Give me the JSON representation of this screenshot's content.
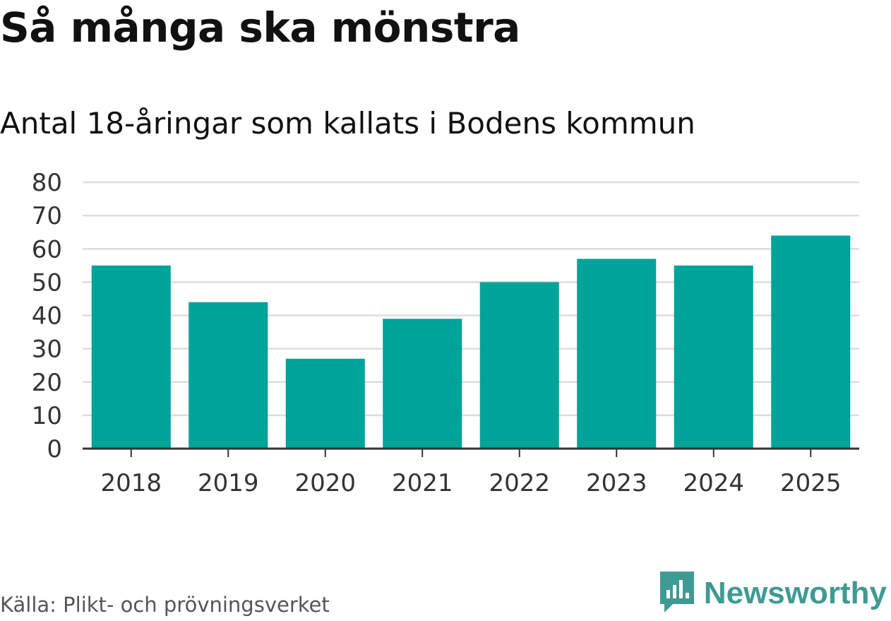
{
  "title": "Så många ska mönstra",
  "subtitle": "Antal 18-åringar som kallats i Bodens kommun",
  "source": "Källa: Plikt- och prövningsverket",
  "brand": {
    "name": "Newsworthy",
    "icon": "newsworthy-logo-icon"
  },
  "colors": {
    "bar": "#00a39a",
    "grid": "#dddddd",
    "axis": "#333333",
    "brand": "#3f9a94"
  },
  "chart_data": {
    "type": "bar",
    "categories": [
      "2018",
      "2019",
      "2020",
      "2021",
      "2022",
      "2023",
      "2024",
      "2025"
    ],
    "values": [
      55,
      44,
      27,
      39,
      50,
      57,
      55,
      64
    ],
    "title": "Så många ska mönstra",
    "subtitle": "Antal 18-åringar som kallats i Bodens kommun",
    "xlabel": "",
    "ylabel": "",
    "ylim": [
      0,
      80
    ],
    "yticks": [
      0,
      10,
      20,
      30,
      40,
      50,
      60,
      70,
      80
    ],
    "grid": true
  }
}
